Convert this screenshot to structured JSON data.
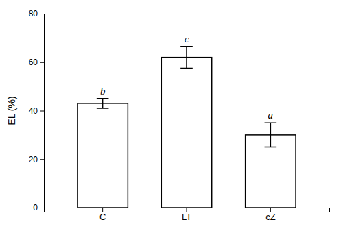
{
  "chart_data": {
    "type": "bar",
    "categories": [
      "C",
      "LT",
      "cZ"
    ],
    "values": [
      43.0,
      62.0,
      30.0
    ],
    "errors": [
      2.0,
      4.5,
      5.0
    ],
    "annotations": [
      "b",
      "c",
      "a"
    ],
    "color": "#ffffff",
    "ylabel": "EL (%)",
    "ylim": [
      0,
      80
    ],
    "yticks": [
      0,
      20,
      40,
      60,
      80
    ],
    "grid": false
  }
}
